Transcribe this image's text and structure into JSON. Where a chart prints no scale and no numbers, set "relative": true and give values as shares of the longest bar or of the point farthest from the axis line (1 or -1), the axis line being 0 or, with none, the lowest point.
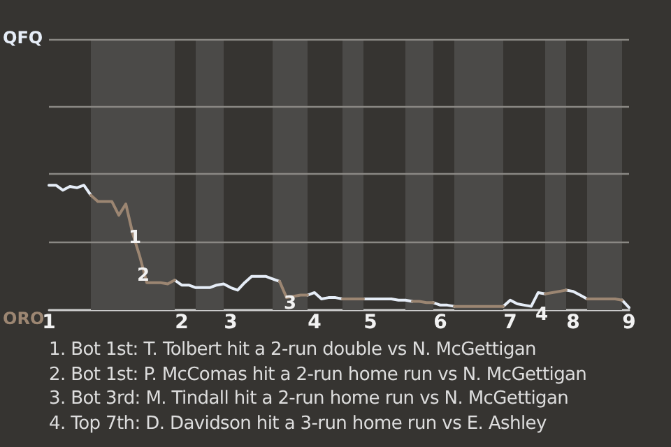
{
  "chart_data": {
    "type": "line",
    "relative": true,
    "categories": [
      "1",
      null,
      null,
      null,
      null,
      null,
      null,
      null,
      null,
      null,
      null,
      null,
      null,
      null,
      null,
      null,
      null,
      null,
      null,
      "2",
      null,
      null,
      null,
      null,
      null,
      null,
      "3",
      null,
      null,
      null,
      null,
      null,
      null,
      null,
      null,
      null,
      null,
      null,
      "4",
      null,
      null,
      null,
      null,
      null,
      null,
      null,
      "5",
      null,
      null,
      null,
      null,
      null,
      null,
      null,
      null,
      null,
      "6",
      null,
      null,
      null,
      null,
      null,
      null,
      null,
      null,
      null,
      "7",
      null,
      null,
      null,
      null,
      null,
      null,
      null,
      null,
      "8",
      null,
      null,
      null,
      null,
      null,
      null,
      null,
      "9"
    ],
    "ref_lines": [
      {
        "axis": "y",
        "value": 0.54,
        "color": "#8a8884"
      },
      {
        "axis": "y",
        "value": 1.09,
        "color": "#8a8884"
      },
      {
        "axis": "y",
        "value": 1.63,
        "color": "#8a8884"
      },
      {
        "axis": "y",
        "value": 2.17,
        "color": "#8a8884"
      }
    ],
    "marker": "none",
    "series": [
      {
        "color": "#e6edf7",
        "values": [
          1,
          1,
          0.96,
          0.99,
          0.98,
          1,
          0.92,
          null,
          null,
          null,
          null,
          null,
          null,
          null,
          null,
          null,
          null,
          null,
          0.24,
          0.2,
          0.2,
          0.18,
          0.18,
          0.18,
          0.2,
          0.21,
          0.18,
          0.16,
          0.22,
          0.27,
          0.27,
          0.27,
          0.25,
          0.23,
          null,
          null,
          null,
          0.12,
          0.14,
          0.09,
          0.1,
          0.1,
          0.09,
          null,
          null,
          0.09,
          0.09,
          0.09,
          0.09,
          0.09,
          0.08,
          0.08,
          0.07,
          null,
          null,
          0.06,
          0.04,
          0.04,
          0.03,
          null,
          null,
          null,
          null,
          null,
          null,
          0.03,
          0.08,
          0.05,
          0.04,
          0.03,
          0.14,
          0.13,
          null,
          null,
          0.16,
          0.15,
          0.12,
          0.09,
          null,
          null,
          null,
          null,
          0.08,
          0.02
        ]
      },
      {
        "color": "#9c8672",
        "values": [
          null,
          null,
          null,
          null,
          null,
          null,
          0.92,
          0.87,
          0.87,
          0.87,
          0.76,
          0.85,
          0.61,
          0.43,
          0.22,
          0.22,
          0.22,
          0.21,
          0.24,
          null,
          null,
          null,
          null,
          null,
          null,
          null,
          null,
          null,
          null,
          null,
          null,
          null,
          null,
          0.23,
          0.1,
          0.11,
          0.12,
          0.12,
          null,
          null,
          null,
          null,
          0.09,
          0.09,
          0.09,
          0.09,
          null,
          null,
          null,
          null,
          null,
          null,
          0.07,
          0.07,
          0.06,
          0.06,
          null,
          null,
          0.03,
          0.03,
          0.03,
          0.03,
          0.03,
          0.03,
          0.03,
          0.03,
          null,
          null,
          null,
          null,
          null,
          0.13,
          0.14,
          0.15,
          0.16,
          null,
          null,
          0.09,
          0.09,
          0.09,
          0.09,
          0.09,
          0.08,
          null
        ]
      }
    ],
    "annotations": [
      "1",
      "2",
      "3",
      "4",
      "QFQ",
      "ORO",
      "1. Bot 1st: T. Tolbert hit a 2-run double vs N. McGettigan",
      "2. Bot 1st: P. McComas hit a 2-run home run vs N. McGettigan",
      "3. Bot 3rd: M. Tindall hit a 2-run home run vs N. McGettigan",
      "4. Top 7th: D. Davidson hit a 3-run home run vs E. Ashley"
    ]
  }
}
